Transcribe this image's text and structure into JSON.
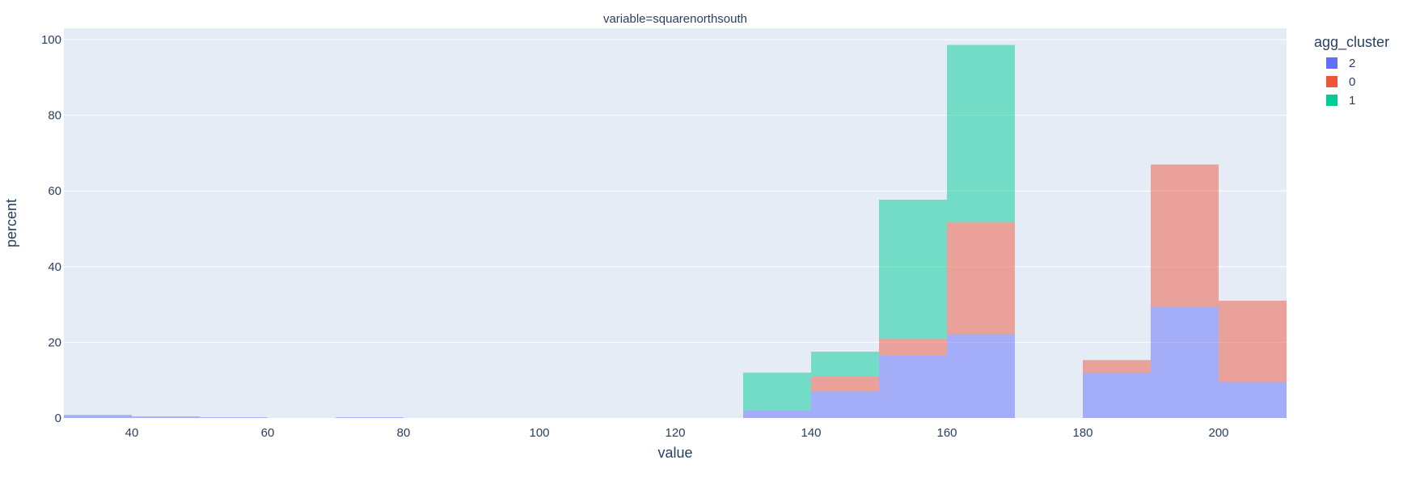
{
  "chart_data": {
    "type": "bar",
    "barmode": "stack",
    "title": "variable=squarenorthsouth",
    "xlabel": "value",
    "ylabel": "percent",
    "xlim": [
      30,
      210
    ],
    "ylim": [
      0,
      103
    ],
    "x_ticks": [
      40,
      60,
      80,
      100,
      120,
      140,
      160,
      180,
      200
    ],
    "y_ticks": [
      0,
      20,
      40,
      60,
      80,
      100
    ],
    "grid": true,
    "bin_width": 10,
    "bins": [
      30,
      40,
      50,
      60,
      70,
      80,
      90,
      100,
      110,
      120,
      130,
      140,
      150,
      160,
      170,
      180,
      190,
      200
    ],
    "legend": {
      "title": "agg_cluster",
      "position": "right"
    },
    "series": [
      {
        "name": "2",
        "color": "#636efa",
        "values": [
          0.8,
          0.4,
          0.2,
          0,
          0.2,
          0,
          0,
          0,
          0,
          0,
          2,
          7,
          16.5,
          22,
          0,
          12,
          29.5,
          9.5
        ]
      },
      {
        "name": "0",
        "color": "#ef553b",
        "values": [
          0,
          0,
          0,
          0,
          0,
          0,
          0,
          0,
          0,
          0,
          0,
          4,
          4.5,
          29.8,
          0,
          3.3,
          37.5,
          21.5
        ]
      },
      {
        "name": "1",
        "color": "#00cc96",
        "values": [
          0,
          0,
          0,
          0,
          0,
          0,
          0,
          0,
          0,
          0,
          10,
          6.5,
          36.7,
          46.8,
          0,
          0,
          0,
          0
        ]
      }
    ]
  }
}
